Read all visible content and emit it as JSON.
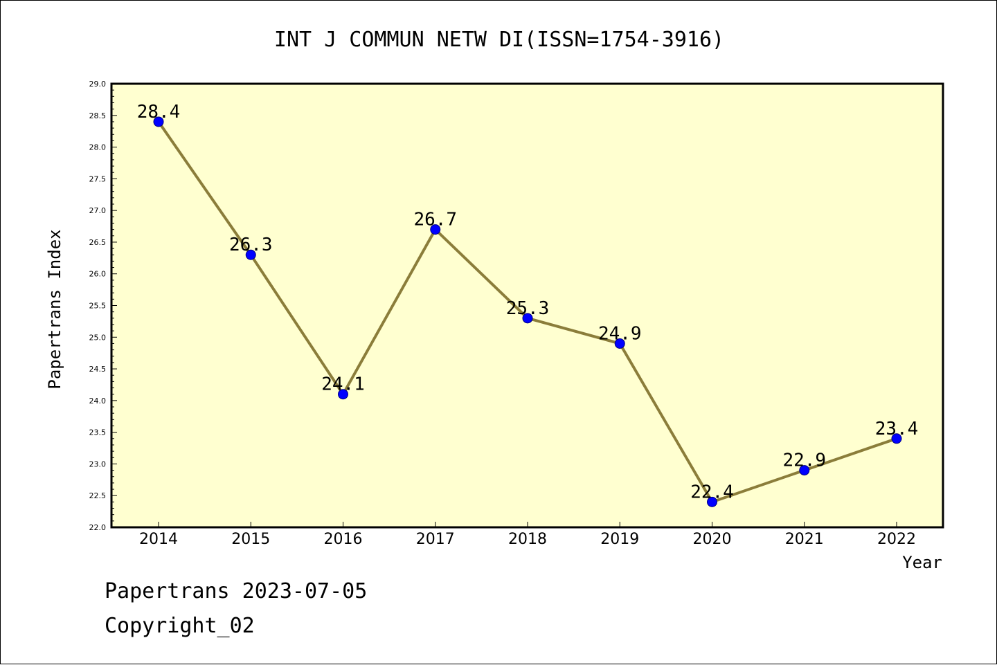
{
  "footer": {
    "line1": "Papertrans 2023-07-05",
    "line2": "Copyright_02"
  },
  "chart_data": {
    "type": "line",
    "title": "INT J COMMUN NETW DI(ISSN=1754-3916)",
    "xlabel": "Year",
    "ylabel": "Papertrans Index",
    "categories": [
      "2014",
      "2015",
      "2016",
      "2017",
      "2018",
      "2019",
      "2020",
      "2021",
      "2022"
    ],
    "series": [
      {
        "values": [
          28.4,
          26.3,
          24.1,
          26.7,
          25.3,
          24.9,
          22.4,
          22.9,
          23.4
        ]
      }
    ],
    "data_labels": [
      "28.4",
      "26.3",
      "24.1",
      "26.7",
      "25.3",
      "24.9",
      "22.4",
      "22.9",
      "23.4"
    ],
    "ylim": [
      22.0,
      29.0
    ],
    "ytick_step": 0.5,
    "grid": false,
    "colors": {
      "plot_background": "#ffffd0",
      "line": "#8b7d3a",
      "marker": "#0000ff",
      "marker_edge": "#000080"
    }
  }
}
